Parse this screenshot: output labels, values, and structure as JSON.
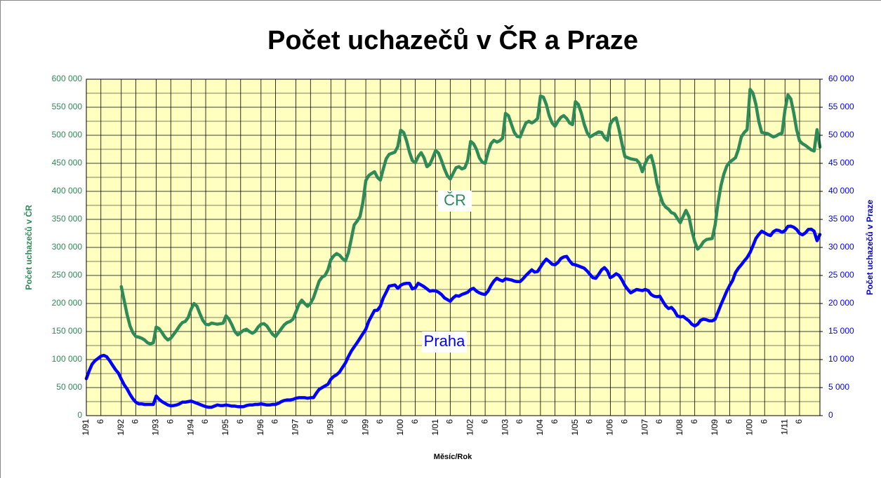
{
  "chart_data": {
    "type": "line",
    "title": "Počet uchazečů v ČR a Praze",
    "xlabel": "Měsíc/Rok",
    "ylabel": "Počet uchazečů  v ČR",
    "y2label": "Počet uchazečů  v Praze",
    "categories": [
      "1/91",
      null,
      null,
      null,
      null,
      "6",
      null,
      null,
      null,
      null,
      null,
      null,
      "1/92",
      null,
      null,
      null,
      null,
      "6",
      null,
      null,
      null,
      null,
      null,
      null,
      "1/93",
      null,
      null,
      null,
      null,
      "6",
      null,
      null,
      null,
      null,
      null,
      null,
      "1/94",
      null,
      null,
      null,
      null,
      "6",
      null,
      null,
      null,
      null,
      null,
      null,
      "1/95",
      null,
      null,
      null,
      null,
      "6",
      null,
      null,
      null,
      null,
      null,
      null,
      "1/96",
      null,
      null,
      null,
      null,
      "6",
      null,
      null,
      null,
      null,
      null,
      null,
      "1/97",
      null,
      null,
      null,
      null,
      "6",
      null,
      null,
      null,
      null,
      null,
      null,
      "1/98",
      null,
      null,
      null,
      null,
      "6",
      null,
      null,
      null,
      null,
      null,
      null,
      "1/99",
      null,
      null,
      null,
      null,
      "6",
      null,
      null,
      null,
      null,
      null,
      null,
      "1/00",
      null,
      null,
      null,
      null,
      "6",
      null,
      null,
      null,
      null,
      null,
      null,
      "1/01",
      null,
      null,
      null,
      null,
      "6",
      null,
      null,
      null,
      null,
      null,
      null,
      "1/02",
      null,
      null,
      null,
      null,
      "6",
      null,
      null,
      null,
      null,
      null,
      null,
      "1/03",
      null,
      null,
      null,
      null,
      "6",
      null,
      null,
      null,
      null,
      null,
      null,
      "1/04",
      null,
      null,
      null,
      null,
      "6",
      null,
      null,
      null,
      null,
      null,
      null,
      "1/05",
      null,
      null,
      null,
      null,
      "6",
      null,
      null,
      null,
      null,
      null,
      null,
      "1/06",
      null,
      null,
      null,
      null,
      "6",
      null,
      null,
      null,
      null,
      null,
      null,
      "1/07",
      null,
      null,
      null,
      null,
      "6",
      null,
      null,
      null,
      null,
      null,
      null,
      "1/08",
      null,
      null,
      null,
      null,
      "6",
      null,
      null,
      null,
      null,
      null,
      null,
      "1/09",
      null,
      null,
      null,
      null,
      "6",
      null,
      null,
      null,
      null,
      null,
      null,
      "1/00",
      null,
      null,
      null,
      null,
      "6",
      null,
      null,
      null,
      null,
      null,
      null,
      "1/11",
      null,
      null,
      null,
      null,
      "6",
      null,
      null,
      null,
      null,
      null,
      null,
      null
    ],
    "series": [
      {
        "name": "ČR",
        "color": "#2e8b57",
        "values": [
          null,
          null,
          null,
          null,
          null,
          null,
          null,
          null,
          null,
          null,
          null,
          null,
          230000,
          205000,
          180000,
          160000,
          148000,
          141000,
          140000,
          138000,
          135000,
          130000,
          128000,
          130000,
          158000,
          155000,
          148000,
          140000,
          135000,
          138000,
          145000,
          152000,
          160000,
          166000,
          168000,
          175000,
          190000,
          200000,
          195000,
          182000,
          170000,
          163000,
          162000,
          165000,
          164000,
          163000,
          164000,
          165000,
          178000,
          172000,
          162000,
          150000,
          144000,
          148000,
          152000,
          154000,
          150000,
          147000,
          150000,
          158000,
          163000,
          164000,
          160000,
          152000,
          145000,
          141000,
          148000,
          155000,
          162000,
          166000,
          168000,
          172000,
          185000,
          198000,
          206000,
          200000,
          195000,
          200000,
          210000,
          225000,
          240000,
          247000,
          250000,
          260000,
          278000,
          285000,
          289000,
          286000,
          280000,
          276000,
          290000,
          315000,
          340000,
          347000,
          355000,
          380000,
          419000,
          428000,
          432000,
          435000,
          425000,
          420000,
          440000,
          458000,
          466000,
          468000,
          470000,
          480000,
          509000,
          505000,
          490000,
          470000,
          455000,
          451000,
          462000,
          469000,
          460000,
          444000,
          448000,
          460000,
          473000,
          468000,
          455000,
          440000,
          428000,
          422000,
          432000,
          442000,
          444000,
          440000,
          442000,
          455000,
          489000,
          485000,
          475000,
          460000,
          452000,
          450000,
          470000,
          485000,
          491000,
          488000,
          490000,
          495000,
          539000,
          535000,
          520000,
          505000,
          498000,
          497000,
          510000,
          522000,
          525000,
          522000,
          525000,
          530000,
          570000,
          568000,
          555000,
          535000,
          522000,
          516000,
          525000,
          532000,
          535000,
          530000,
          522000,
          519000,
          560000,
          555000,
          540000,
          520000,
          505000,
          497000,
          500000,
          503000,
          506000,
          505000,
          496000,
          491000,
          520000,
          528000,
          531000,
          510000,
          485000,
          462000,
          460000,
          458000,
          457000,
          456000,
          450000,
          435000,
          450000,
          460000,
          464000,
          445000,
          415000,
          395000,
          379000,
          372000,
          368000,
          362000,
          360000,
          352000,
          344000,
          355000,
          366000,
          355000,
          330000,
          310000,
          297000,
          302000,
          310000,
          314000,
          315000,
          316000,
          340000,
          380000,
          410000,
          431000,
          445000,
          452000,
          456000,
          460000,
          475000,
          497000,
          505000,
          510000,
          582000,
          575000,
          555000,
          525000,
          505000,
          504000,
          503000,
          500000,
          497000,
          499000,
          502000,
          504000,
          545000,
          572000,
          565000,
          540000,
          510000,
          490000,
          485000,
          482000,
          478000,
          474000,
          472000,
          510000,
          479000
        ]
      },
      {
        "name": "Praha",
        "color": "#0000ff",
        "axis": "y2",
        "values": [
          6600,
          8000,
          9200,
          9800,
          10200,
          10600,
          10750,
          10500,
          9800,
          9000,
          8200,
          7600,
          6500,
          5500,
          4750,
          3800,
          3000,
          2400,
          2100,
          2100,
          2000,
          2000,
          2000,
          2000,
          3500,
          2900,
          2500,
          2200,
          1900,
          1750,
          1800,
          1900,
          2100,
          2400,
          2400,
          2500,
          2600,
          2400,
          2200,
          2000,
          1800,
          1600,
          1500,
          1500,
          1700,
          1900,
          1800,
          1800,
          1900,
          1800,
          1700,
          1700,
          1600,
          1600,
          1600,
          1800,
          1900,
          1900,
          2000,
          2000,
          2100,
          2000,
          1900,
          1900,
          2000,
          2000,
          2200,
          2500,
          2700,
          2800,
          2800,
          2900,
          3100,
          3200,
          3200,
          3200,
          3100,
          3200,
          3200,
          4000,
          4700,
          5000,
          5300,
          5600,
          6500,
          7000,
          7300,
          7800,
          8600,
          9400,
          10500,
          11500,
          12250,
          13000,
          13800,
          14600,
          15400,
          16800,
          17800,
          18750,
          18800,
          19500,
          21000,
          22000,
          23100,
          23200,
          23300,
          22700,
          23250,
          23500,
          23600,
          23600,
          22600,
          22800,
          23600,
          23300,
          23000,
          22600,
          22200,
          22300,
          22250,
          22000,
          21600,
          21000,
          20700,
          20400,
          21000,
          21400,
          21300,
          21600,
          21800,
          22000,
          22500,
          22700,
          22200,
          21900,
          21700,
          21600,
          22200,
          23200,
          24000,
          24500,
          24200,
          24000,
          24400,
          24300,
          24200,
          24000,
          23900,
          23900,
          24400,
          25000,
          25500,
          26000,
          25600,
          25700,
          26500,
          27300,
          27900,
          27500,
          27000,
          26900,
          27300,
          28000,
          28300,
          28400,
          27600,
          27000,
          26900,
          26700,
          26500,
          26300,
          25800,
          25200,
          24600,
          24500,
          25200,
          26000,
          26400,
          25800,
          24600,
          24900,
          25300,
          25000,
          24200,
          23200,
          22500,
          21900,
          22200,
          22500,
          22400,
          22300,
          22500,
          22300,
          21600,
          21300,
          21200,
          21300,
          20400,
          19600,
          19100,
          19300,
          18700,
          17800,
          17600,
          17700,
          17300,
          16900,
          16300,
          16000,
          16300,
          17000,
          17200,
          17100,
          16900,
          16900,
          17200,
          18500,
          19800,
          21000,
          22200,
          23200,
          24100,
          25500,
          26300,
          26900,
          27600,
          28200,
          29100,
          30300,
          31600,
          32300,
          32900,
          32600,
          32300,
          32100,
          32800,
          33100,
          33000,
          32700,
          33000,
          33750,
          33800,
          33600,
          33200,
          32500,
          32250,
          32600,
          33200,
          33250,
          32900,
          31200,
          32300
        ]
      }
    ],
    "ylim": [
      0,
      600000
    ],
    "yticks": [
      0,
      {
        "value": 50000,
        "label": "50 000"
      },
      {
        "value": 100000,
        "label": "100 000"
      },
      {
        "value": 150000,
        "label": "150 000"
      },
      {
        "value": 200000,
        "label": "200 000"
      },
      {
        "value": 250000,
        "label": "250 000"
      },
      {
        "value": 300000,
        "label": "300 000"
      },
      {
        "value": 350000,
        "label": "350 000"
      },
      {
        "value": 400000,
        "label": "400 000"
      },
      {
        "value": 450000,
        "label": "450 000"
      },
      {
        "value": 500000,
        "label": "500 000"
      },
      {
        "value": 550000,
        "label": "550 000"
      },
      {
        "value": 600000,
        "label": "600 000"
      }
    ],
    "minor_yticks": [
      25000,
      75000,
      125000,
      175000,
      225000,
      275000,
      325000,
      375000,
      425000,
      475000,
      525000,
      575000
    ],
    "y2lim": [
      0,
      60000
    ],
    "y2ticks": [
      0,
      {
        "value": 5000,
        "label": "5 000"
      },
      {
        "value": 10000,
        "label": "10 000"
      },
      {
        "value": 15000,
        "label": "15 000"
      },
      {
        "value": 20000,
        "label": "20 000"
      },
      {
        "value": 25000,
        "label": "25 000"
      },
      {
        "value": 30000,
        "label": "30 000"
      },
      {
        "value": 35000,
        "label": "35 000"
      },
      {
        "value": 40000,
        "label": "40 000"
      },
      {
        "value": 45000,
        "label": "45 000"
      },
      {
        "value": 50000,
        "label": "50 000"
      },
      {
        "value": 55000,
        "label": "55 000"
      },
      {
        "value": 60000,
        "label": "60 000"
      }
    ],
    "grid": true,
    "plot_background": "#ffffc0"
  }
}
